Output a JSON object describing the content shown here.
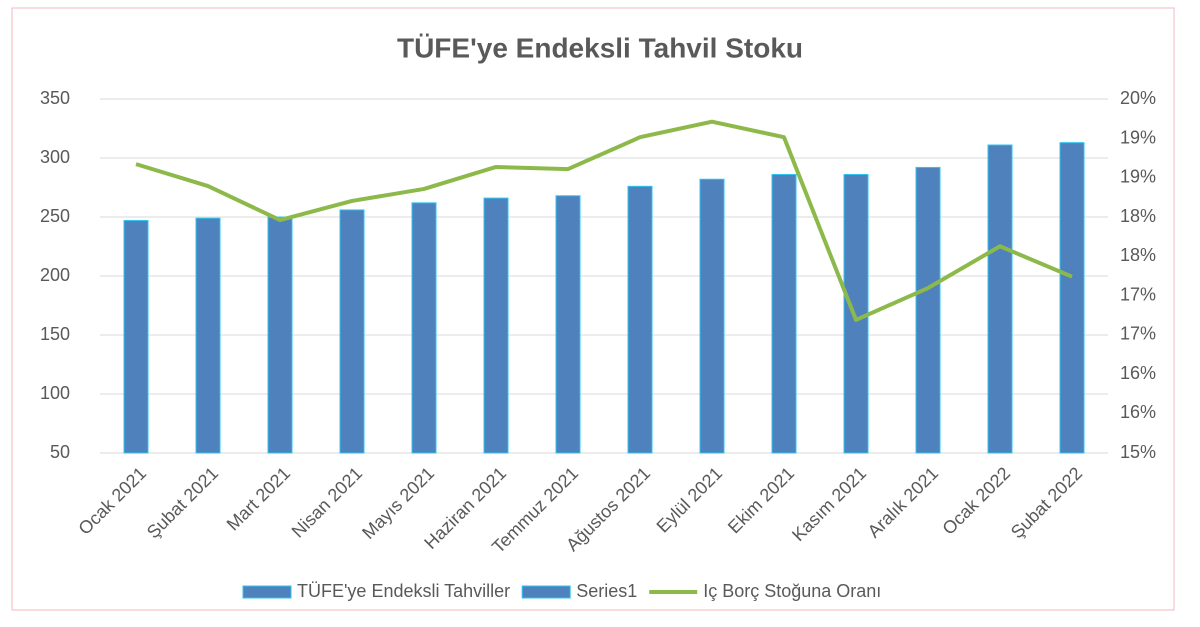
{
  "chart_data": {
    "type": "combo",
    "title": "TÜFE'ye Endeksli Tahvil Stoku",
    "categories": [
      "Ocak 2021",
      "Şubat 2021",
      "Mart 2021",
      "Nisan 2021",
      "Mayıs 2021",
      "Haziran 2021",
      "Temmuz 2021",
      "Ağustos 2021",
      "Eylül 2021",
      "Ekim 2021",
      "Kasım 2021",
      "Aralık 2021",
      "Ocak 2022",
      "Şubat 2022"
    ],
    "series": [
      {
        "name": "TÜFE'ye Endeksli Tahviller",
        "type": "bar",
        "color": "#4f81bd",
        "values": [
          247,
          249,
          250,
          256,
          262,
          266,
          268,
          276,
          282,
          286,
          286,
          292,
          311,
          313
        ]
      },
      {
        "name": "Series1",
        "type": "bar",
        "color": "#4f81bd",
        "values": [
          null,
          null,
          null,
          null,
          null,
          null,
          null,
          null,
          null,
          null,
          null,
          null,
          null,
          null
        ]
      },
      {
        "name": "Iç Borç Stoğuna Oranı",
        "type": "line",
        "axis": "y2",
        "color": "#8db94a",
        "values": [
          19.08,
          18.77,
          18.29,
          18.56,
          18.73,
          19.04,
          19.01,
          19.46,
          19.68,
          19.46,
          16.88,
          17.33,
          17.92,
          17.49
        ]
      }
    ],
    "ylim": [
      50,
      350
    ],
    "yticks": [
      50,
      100,
      150,
      200,
      250,
      300,
      350
    ],
    "y2lim": [
      15,
      20
    ],
    "y2ticks": [
      {
        "value": 15,
        "label": "15%"
      },
      {
        "value": 15.56,
        "label": "16%"
      },
      {
        "value": 16.11,
        "label": "16%"
      },
      {
        "value": 16.67,
        "label": "17%"
      },
      {
        "value": 17.22,
        "label": "17%"
      },
      {
        "value": 17.78,
        "label": "18%"
      },
      {
        "value": 18.33,
        "label": "18%"
      },
      {
        "value": 18.89,
        "label": "19%"
      },
      {
        "value": 19.44,
        "label": "19%"
      },
      {
        "value": 20,
        "label": "20%"
      }
    ],
    "grid": true,
    "legend": "bottom"
  }
}
